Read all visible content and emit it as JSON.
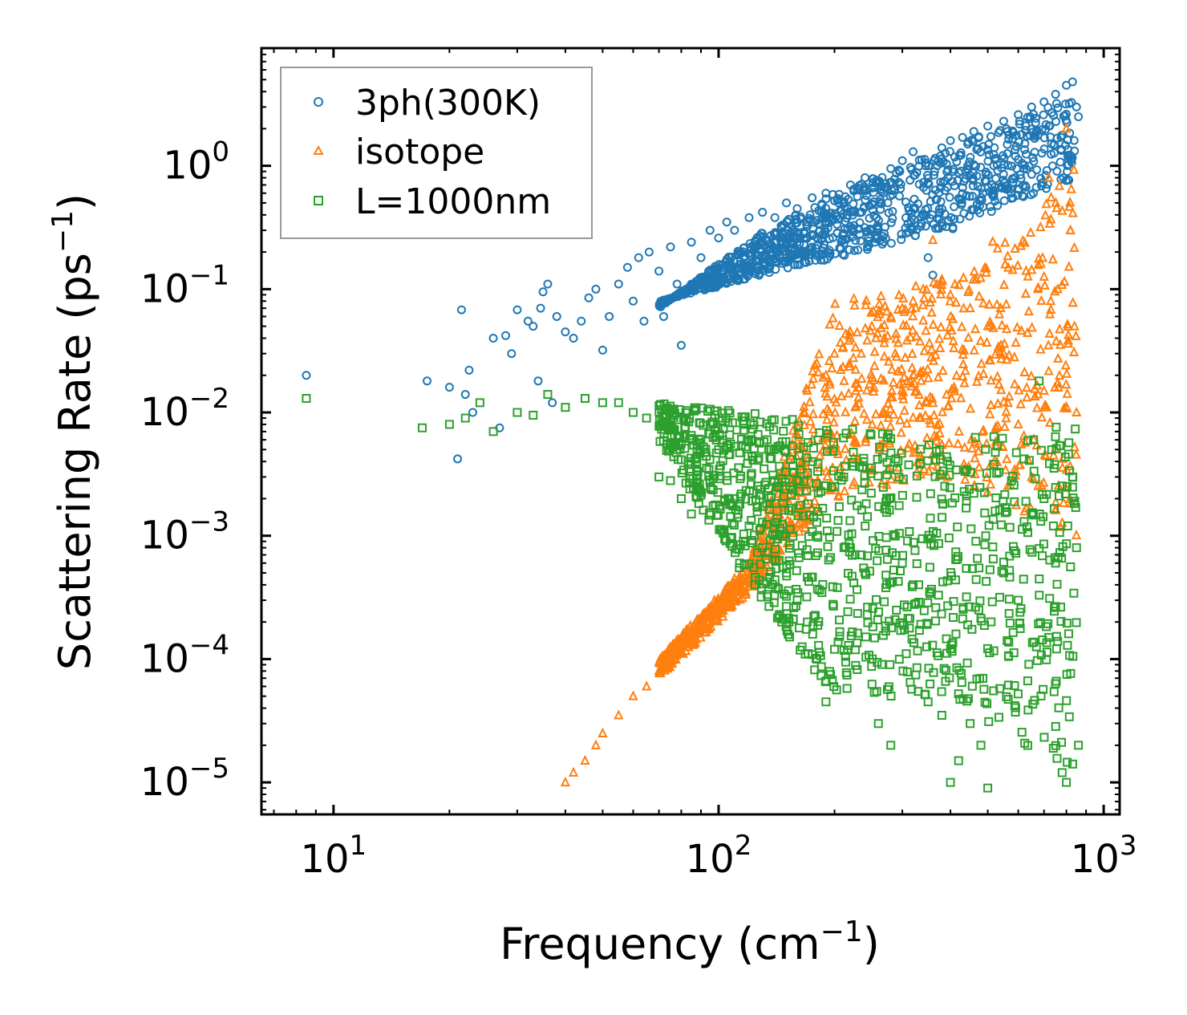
{
  "chart_data": {
    "type": "scatter",
    "xscale": "log",
    "yscale": "log",
    "xlim": [
      6.5,
      1100
    ],
    "ylim": [
      5.5e-06,
      9.0
    ],
    "xlabel": "Frequency (cm",
    "xlabel_sup": "−1",
    "xlabel_end": ")",
    "ylabel": "Scattering Rate (ps",
    "ylabel_sup": "−1",
    "ylabel_end": ")",
    "x_ticks": [
      {
        "value": 10,
        "base": "10",
        "exp": "1"
      },
      {
        "value": 100,
        "base": "10",
        "exp": "2"
      },
      {
        "value": 1000,
        "base": "10",
        "exp": "3"
      }
    ],
    "y_ticks": [
      {
        "value": 1,
        "base": "10",
        "exp": "0"
      },
      {
        "value": 0.1,
        "base": "10",
        "exp": "−1"
      },
      {
        "value": 0.01,
        "base": "10",
        "exp": "−2"
      },
      {
        "value": 0.001,
        "base": "10",
        "exp": "−3"
      },
      {
        "value": 0.0001,
        "base": "10",
        "exp": "−4"
      },
      {
        "value": 1e-05,
        "base": "10",
        "exp": "−5"
      }
    ],
    "legend_position": "top-left",
    "series": [
      {
        "name": "3ph(300K)",
        "marker": "circle",
        "color": "#1f77b4",
        "points": [
          [
            8.5,
            0.02
          ],
          [
            17.5,
            0.018
          ],
          [
            20,
            0.016
          ],
          [
            21,
            0.0042
          ],
          [
            21.5,
            0.068
          ],
          [
            22,
            0.014
          ],
          [
            22.5,
            0.022
          ],
          [
            23,
            0.01
          ],
          [
            26,
            0.04
          ],
          [
            27,
            0.0075
          ],
          [
            28,
            0.042
          ],
          [
            29,
            0.03
          ],
          [
            30,
            0.068
          ],
          [
            32,
            0.055
          ],
          [
            33,
            0.05
          ],
          [
            34,
            0.018
          ],
          [
            34.5,
            0.07
          ],
          [
            35,
            0.095
          ],
          [
            36,
            0.11
          ],
          [
            37,
            0.012
          ],
          [
            38,
            0.06
          ],
          [
            40,
            0.045
          ],
          [
            42,
            0.04
          ],
          [
            44,
            0.055
          ],
          [
            46,
            0.085
          ],
          [
            48,
            0.1
          ],
          [
            50,
            0.032
          ],
          [
            52,
            0.06
          ],
          [
            55,
            0.11
          ],
          [
            58,
            0.15
          ],
          [
            60,
            0.08
          ],
          [
            62,
            0.18
          ],
          [
            64,
            0.055
          ],
          [
            66,
            0.2
          ],
          [
            70,
            0.14
          ],
          [
            72,
            0.06
          ],
          [
            75,
            0.22
          ],
          [
            78,
            0.11
          ],
          [
            80,
            0.035
          ],
          [
            85,
            0.24
          ],
          [
            90,
            0.18
          ],
          [
            95,
            0.3
          ],
          [
            100,
            0.26
          ],
          [
            105,
            0.35
          ],
          [
            110,
            0.3
          ],
          [
            120,
            0.38
          ],
          [
            130,
            0.42
          ],
          [
            140,
            0.38
          ],
          [
            150,
            0.5
          ],
          [
            160,
            0.45
          ],
          [
            175,
            0.55
          ],
          [
            190,
            0.6
          ],
          [
            200,
            0.52
          ],
          [
            220,
            0.7
          ],
          [
            240,
            0.8
          ],
          [
            260,
            0.75
          ],
          [
            280,
            0.95
          ],
          [
            300,
            1.1
          ],
          [
            320,
            1.3
          ],
          [
            350,
            0.18
          ],
          [
            360,
            0.13
          ],
          [
            380,
            1.4
          ],
          [
            400,
            1.6
          ],
          [
            430,
            1.7
          ],
          [
            460,
            1.9
          ],
          [
            500,
            2.1
          ],
          [
            550,
            2.3
          ],
          [
            600,
            2.6
          ],
          [
            650,
            3.0
          ],
          [
            700,
            3.3
          ],
          [
            750,
            3.8
          ],
          [
            800,
            4.5
          ],
          [
            830,
            4.8
          ],
          [
            850,
            3.0
          ],
          [
            860,
            2.5
          ]
        ]
      },
      {
        "name": "isotope",
        "marker": "triangle",
        "color": "#ff7f0e",
        "points": [
          [
            40,
            1e-05
          ],
          [
            42,
            1.2e-05
          ],
          [
            45,
            1.5e-05
          ],
          [
            48,
            2e-05
          ],
          [
            50,
            2.5e-05
          ],
          [
            55,
            3.5e-05
          ],
          [
            60,
            5e-05
          ],
          [
            65,
            6e-05
          ],
          [
            70,
            8e-05
          ],
          [
            75,
            0.0001
          ],
          [
            80,
            0.00013
          ],
          [
            90,
            0.0002
          ],
          [
            100,
            0.0003
          ],
          [
            110,
            0.00045
          ],
          [
            120,
            0.0006
          ],
          [
            130,
            0.0008
          ],
          [
            140,
            0.0012
          ],
          [
            150,
            0.002
          ],
          [
            160,
            0.005
          ],
          [
            170,
            0.015
          ],
          [
            180,
            0.025
          ],
          [
            190,
            0.02
          ],
          [
            200,
            0.03
          ],
          [
            220,
            0.04
          ],
          [
            250,
            0.05
          ],
          [
            280,
            0.06
          ],
          [
            300,
            0.07
          ],
          [
            320,
            0.08
          ],
          [
            340,
            0.1
          ],
          [
            360,
            0.25
          ],
          [
            380,
            0.12
          ],
          [
            400,
            0.09
          ],
          [
            450,
            0.07
          ],
          [
            500,
            0.05
          ],
          [
            550,
            0.03
          ],
          [
            600,
            0.008
          ],
          [
            650,
            0.003
          ],
          [
            700,
            0.015
          ],
          [
            720,
            0.8
          ],
          [
            760,
            0.1
          ],
          [
            800,
            2.0
          ],
          [
            820,
            0.3
          ],
          [
            840,
            0.05
          ],
          [
            850,
            0.01
          ]
        ]
      },
      {
        "name": "L=1000nm",
        "marker": "square",
        "color": "#2ca02c",
        "points": [
          [
            8.5,
            0.013
          ],
          [
            17,
            0.0075
          ],
          [
            20,
            0.008
          ],
          [
            22,
            0.009
          ],
          [
            24,
            0.012
          ],
          [
            26,
            0.007
          ],
          [
            30,
            0.01
          ],
          [
            33,
            0.0095
          ],
          [
            36,
            0.014
          ],
          [
            40,
            0.011
          ],
          [
            45,
            0.013
          ],
          [
            50,
            0.012
          ],
          [
            55,
            0.012
          ],
          [
            60,
            0.01
          ],
          [
            65,
            0.009
          ],
          [
            70,
            0.003
          ],
          [
            75,
            0.0028
          ],
          [
            80,
            0.002
          ],
          [
            85,
            0.0015
          ],
          [
            90,
            0.006
          ],
          [
            95,
            0.008
          ],
          [
            100,
            0.005
          ],
          [
            110,
            0.002
          ],
          [
            120,
            0.0012
          ],
          [
            130,
            0.0008
          ],
          [
            140,
            0.001
          ],
          [
            150,
            0.0005
          ],
          [
            160,
            0.0003
          ],
          [
            170,
            0.0002
          ],
          [
            180,
            0.0001
          ],
          [
            190,
            4.5e-05
          ],
          [
            200,
            0.00012
          ],
          [
            220,
            0.0008
          ],
          [
            240,
            0.0005
          ],
          [
            260,
            3e-05
          ],
          [
            280,
            2e-05
          ],
          [
            300,
            0.0006
          ],
          [
            320,
            0.0004
          ],
          [
            350,
            4.5e-05
          ],
          [
            380,
            3.5e-05
          ],
          [
            400,
            1e-05
          ],
          [
            420,
            1.5e-05
          ],
          [
            450,
            3e-05
          ],
          [
            480,
            2e-05
          ],
          [
            500,
            9e-06
          ],
          [
            550,
            0.0005
          ],
          [
            600,
            0.0003
          ],
          [
            650,
            0.0015
          ],
          [
            680,
            0.018
          ],
          [
            700,
            0.002
          ],
          [
            720,
            0.00015
          ],
          [
            750,
            0.0006
          ],
          [
            780,
            1.2e-05
          ],
          [
            800,
            1e-05
          ],
          [
            830,
            0.003
          ],
          [
            850,
            0.0008
          ],
          [
            860,
            2e-05
          ]
        ]
      }
    ],
    "bands": {
      "3ph(300K)": [
        [
          0.07,
          0.08
        ],
        [
          0.25,
          0.12
        ],
        [
          0.6,
          0.18
        ],
        [
          1.4,
          0.3
        ],
        [
          3.8,
          0.8
        ]
      ],
      "isotope": [
        [
          0.0001,
          7e-05
        ],
        [
          0.0006,
          0.00035
        ],
        [
          0.08,
          0.002
        ],
        [
          0.12,
          0.003
        ],
        [
          1.0,
          0.001
        ]
      ],
      "L=1000nm": [
        [
          0.012,
          0.006
        ],
        [
          0.01,
          0.0004
        ],
        [
          0.008,
          5e-05
        ],
        [
          0.006,
          5e-05
        ],
        [
          0.008,
          1e-05
        ]
      ]
    },
    "band_x": [
      70,
      120,
      200,
      400,
      850
    ]
  }
}
